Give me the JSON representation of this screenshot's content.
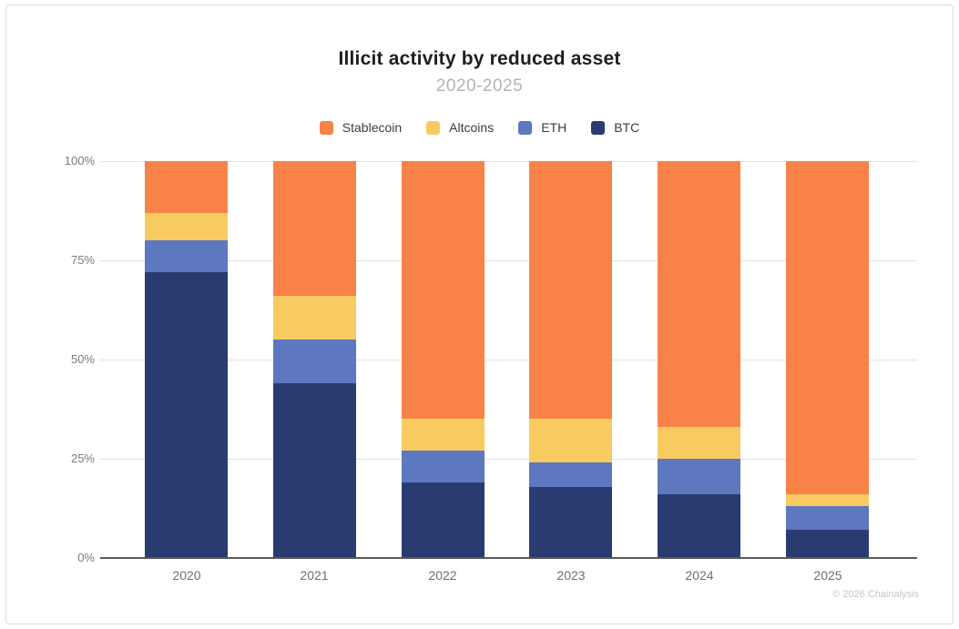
{
  "header": {
    "title": "Illicit activity by reduced asset",
    "subtitle": "2020-2025"
  },
  "footer": {
    "copyright": "© 2026 Chainalysis"
  },
  "colors": {
    "stablecoin": "#F98249",
    "altcoins": "#F8CB61",
    "eth": "#5D78BF",
    "btc": "#2A3B72",
    "gridline": "#e2e2e2",
    "axis_line": "#595959",
    "subtitle_text": "#b4b4b4",
    "tick_text": "#7a7a7a"
  },
  "chart_data": {
    "type": "bar",
    "stacked": true,
    "title": "Illicit activity by reduced asset",
    "subtitle": "2020-2025",
    "categories": [
      "2020",
      "2021",
      "2022",
      "2023",
      "2024",
      "2025"
    ],
    "unit": "%",
    "ylim": [
      0,
      100
    ],
    "yticks": [
      "0%",
      "25%",
      "50%",
      "75%",
      "100%"
    ],
    "grid": true,
    "legend_position": "top",
    "stack_note": "series listed in legend order (top of stack first); BTC is bottom of stack",
    "series": [
      {
        "name": "Stablecoin",
        "color": "#F98249",
        "values": [
          13,
          34,
          65,
          65,
          67,
          84
        ]
      },
      {
        "name": "Altcoins",
        "color": "#F8CB61",
        "values": [
          7,
          11,
          8,
          11,
          8,
          3
        ]
      },
      {
        "name": "ETH",
        "color": "#5D78BF",
        "values": [
          8,
          11,
          8,
          6,
          9,
          6
        ]
      },
      {
        "name": "BTC",
        "color": "#2A3B72",
        "values": [
          72,
          44,
          19,
          18,
          16,
          7
        ]
      }
    ]
  }
}
